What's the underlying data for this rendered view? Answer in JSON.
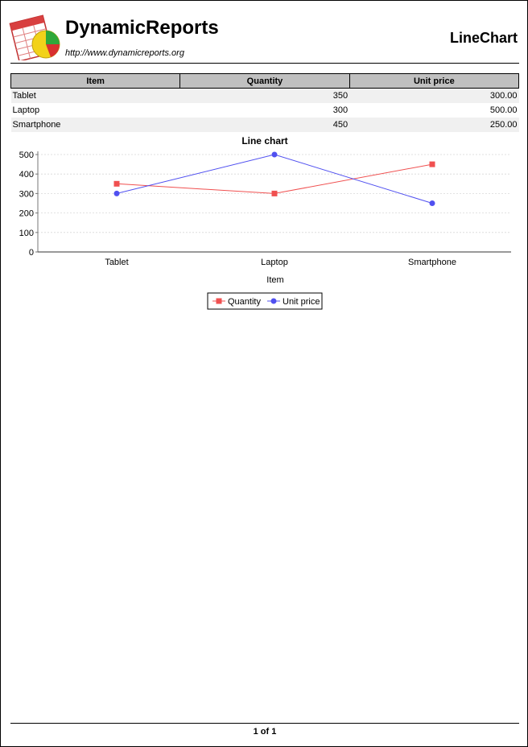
{
  "header": {
    "brand": "DynamicReports",
    "url": "http://www.dynamicreports.org",
    "report_title": "LineChart",
    "logo_icon": "dynamicreports-logo-icon"
  },
  "table": {
    "columns": [
      "Item",
      "Quantity",
      "Unit price"
    ],
    "rows": [
      {
        "item": "Tablet",
        "quantity": "350",
        "unit_price": "300.00"
      },
      {
        "item": "Laptop",
        "quantity": "300",
        "unit_price": "500.00"
      },
      {
        "item": "Smartphone",
        "quantity": "450",
        "unit_price": "250.00"
      }
    ]
  },
  "chart_data": {
    "type": "line",
    "title": "Line chart",
    "xlabel": "Item",
    "ylabel": "",
    "categories": [
      "Tablet",
      "Laptop",
      "Smartphone"
    ],
    "series": [
      {
        "name": "Quantity",
        "values": [
          350,
          300,
          450
        ],
        "color": "#f05050",
        "marker": "square"
      },
      {
        "name": "Unit price",
        "values": [
          300,
          500,
          250
        ],
        "color": "#5050f0",
        "marker": "circle"
      }
    ],
    "ylim": [
      0,
      500
    ],
    "yticks": [
      0,
      100,
      200,
      300,
      400,
      500
    ],
    "grid": true,
    "legend": "bottom-center"
  },
  "footer": {
    "page_label": "1 of 1"
  }
}
